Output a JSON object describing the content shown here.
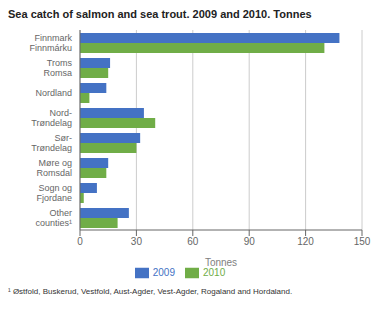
{
  "chart_data": {
    "type": "bar",
    "orientation": "horizontal",
    "title": "Sea catch of salmon and sea trout. 2009 and 2010. Tonnes",
    "categories": [
      "Other\ncounties¹",
      "Sogn og\nFjordane",
      "Møre og\nRomsdal",
      "Sør-\nTrøndelag",
      "Nord-\nTrøndelag",
      "Nordland",
      "Troms\nRomsa",
      "Finnmark\nFinnmárku"
    ],
    "series": [
      {
        "name": "2009",
        "color": "#4472c4",
        "values": [
          26,
          9,
          15,
          32,
          34,
          14,
          16,
          138
        ]
      },
      {
        "name": "2010",
        "color": "#70ad47",
        "values": [
          20,
          2,
          14,
          30,
          40,
          5,
          15,
          130
        ]
      }
    ],
    "xlabel": "Tonnes",
    "xlim": [
      0,
      150
    ],
    "xticks": [
      0,
      30,
      60,
      90,
      120,
      150
    ],
    "grid": true,
    "annotations": [
      "¹ Østfold, Buskerud, Vestfold, Aust-Agder, Vest-Agder, Rogaland and Hordaland."
    ]
  }
}
